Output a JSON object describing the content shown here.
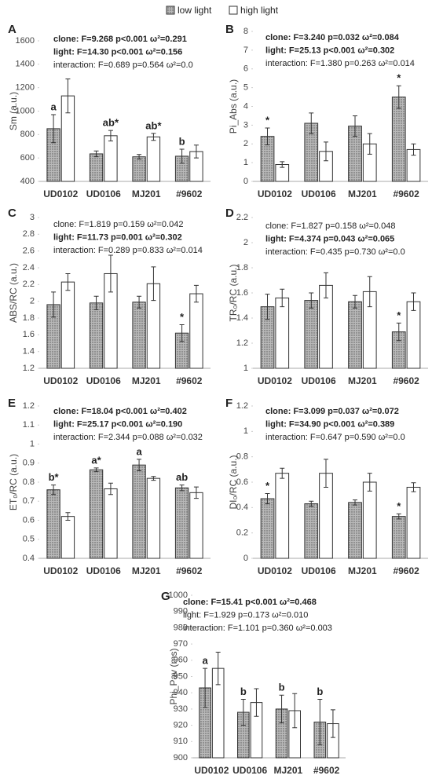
{
  "legend": [
    {
      "name": "low light",
      "color": "#b9b9b9",
      "pattern": "dots"
    },
    {
      "name": "high light",
      "color": "#ffffff"
    }
  ],
  "chart_data": [
    {
      "type": "bar",
      "panel": "A",
      "y_label": "Sm (a.u.)",
      "categories": [
        "UD0102",
        "UD0106",
        "MJ201",
        "#9602"
      ],
      "ylim": [
        400,
        1600
      ],
      "yticks": [
        400,
        600,
        800,
        1000,
        1200,
        1400,
        1600
      ],
      "stats": [
        {
          "text": "clone: F=9.268 p<0.001 ω²=0.291",
          "bold": true
        },
        {
          "text": "light: F=14.30 p<0.001 ω²=0.156",
          "bold": true
        },
        {
          "text": "interaction: F=0.689 p=0.564 ω²=0.0",
          "bold": false
        }
      ],
      "series": [
        {
          "values": [
            850,
            635,
            610,
            615
          ],
          "errors": [
            120,
            25,
            20,
            60
          ],
          "annotations": [
            "a",
            null,
            null,
            "b"
          ]
        },
        {
          "values": [
            1130,
            790,
            780,
            655
          ],
          "errors": [
            145,
            45,
            30,
            55
          ],
          "annotations": [
            null,
            "ab*",
            "ab*",
            null
          ]
        }
      ]
    },
    {
      "type": "bar",
      "panel": "B",
      "y_label": "Pi_Abs (a.u.)",
      "categories": [
        "UD0102",
        "UD0106",
        "MJ201",
        "#9602"
      ],
      "ylim": [
        0,
        8
      ],
      "yticks": [
        0,
        1,
        2,
        3,
        4,
        5,
        6,
        7,
        8
      ],
      "stats": [
        {
          "text": "clone: F=3.240 p=0.032 ω²=0.084",
          "bold": true
        },
        {
          "text": "light: F=25.13 p<0.001 ω²=0.302",
          "bold": true
        },
        {
          "text": "interaction: F=1.380 p=0.263 ω²=0.014",
          "bold": false
        }
      ],
      "series": [
        {
          "values": [
            2.4,
            3.1,
            2.95,
            4.5
          ],
          "errors": [
            0.45,
            0.55,
            0.55,
            0.6
          ],
          "annotations": [
            "*",
            null,
            null,
            "*"
          ]
        },
        {
          "values": [
            0.9,
            1.6,
            2.0,
            1.7
          ],
          "errors": [
            0.15,
            0.5,
            0.55,
            0.3
          ],
          "annotations": [
            null,
            null,
            null,
            null
          ]
        }
      ]
    },
    {
      "type": "bar",
      "panel": "C",
      "y_label": "ABS/RC (a.u.)",
      "categories": [
        "UD0102",
        "UD0106",
        "MJ201",
        "#9602"
      ],
      "ylim": [
        1.2,
        3
      ],
      "yticks": [
        1.2,
        1.4,
        1.6,
        1.8,
        2,
        2.2,
        2.4,
        2.6,
        2.8,
        3
      ],
      "stats": [
        {
          "text": "clone: F=1.819 p=0.159 ω²=0.042",
          "bold": false
        },
        {
          "text": "light: F=11.73 p=0.001 ω²=0.302",
          "bold": true
        },
        {
          "text": "interaction: F=0.289 p=0.833 ω²=0.014",
          "bold": false
        }
      ],
      "series": [
        {
          "values": [
            1.96,
            1.98,
            1.99,
            1.62
          ],
          "errors": [
            0.15,
            0.08,
            0.07,
            0.1
          ],
          "annotations": [
            null,
            null,
            null,
            "*"
          ]
        },
        {
          "values": [
            2.23,
            2.33,
            2.21,
            2.09
          ],
          "errors": [
            0.1,
            0.22,
            0.2,
            0.1
          ],
          "annotations": [
            null,
            null,
            null,
            null
          ]
        }
      ]
    },
    {
      "type": "bar",
      "panel": "D",
      "y_label": "TR₀/RC (a.u.)",
      "categories": [
        "UD0102",
        "UD0106",
        "MJ201",
        "#9602"
      ],
      "ylim": [
        1,
        2.2
      ],
      "yticks": [
        1,
        1.2,
        1.4,
        1.6,
        1.8,
        2,
        2.2
      ],
      "stats": [
        {
          "text": "clone: F=1.827 p=0.158 ω²=0.048",
          "bold": false
        },
        {
          "text": "light: F=4.374 p=0.043 ω²=0.065",
          "bold": true
        },
        {
          "text": "interaction: F=0.435 p=0.730 ω²=0.0",
          "bold": false
        }
      ],
      "series": [
        {
          "values": [
            1.49,
            1.54,
            1.53,
            1.29
          ],
          "errors": [
            0.1,
            0.06,
            0.05,
            0.07
          ],
          "annotations": [
            null,
            null,
            null,
            "*"
          ]
        },
        {
          "values": [
            1.56,
            1.66,
            1.61,
            1.53
          ],
          "errors": [
            0.07,
            0.1,
            0.12,
            0.07
          ],
          "annotations": [
            null,
            null,
            null,
            null
          ]
        }
      ]
    },
    {
      "type": "bar",
      "panel": "E",
      "y_label": "ET₀/RC (a.u.)",
      "categories": [
        "UD0102",
        "UD0106",
        "MJ201",
        "#9602"
      ],
      "ylim": [
        0.4,
        1.2
      ],
      "yticks": [
        0.4,
        0.5,
        0.6,
        0.7,
        0.8,
        0.9,
        1,
        1.1,
        1.2
      ],
      "stats": [
        {
          "text": "clone: F=18.04 p<0.001 ω²=0.402",
          "bold": true
        },
        {
          "text": "light: F=25.17 p<0.001 ω²=0.190",
          "bold": true
        },
        {
          "text": "interaction: F=2.344 p=0.088 ω²=0.032",
          "bold": false
        }
      ],
      "series": [
        {
          "values": [
            0.76,
            0.865,
            0.89,
            0.77
          ],
          "errors": [
            0.025,
            0.01,
            0.03,
            0.015
          ],
          "annotations": [
            "b*",
            "a*",
            "a",
            "ab"
          ]
        },
        {
          "values": [
            0.62,
            0.765,
            0.82,
            0.745
          ],
          "errors": [
            0.02,
            0.03,
            0.01,
            0.03
          ],
          "annotations": [
            null,
            null,
            null,
            null
          ]
        }
      ]
    },
    {
      "type": "bar",
      "panel": "F",
      "y_label": "DI₀/RC (a.u.)",
      "categories": [
        "UD0102",
        "UD0106",
        "MJ201",
        "#9602"
      ],
      "ylim": [
        0,
        1.2
      ],
      "yticks": [
        0,
        0.2,
        0.4,
        0.6,
        0.8,
        1,
        1.2
      ],
      "stats": [
        {
          "text": "clone: F=3.099 p=0.037 ω²=0.072",
          "bold": true
        },
        {
          "text": "light: F=34.90 p<0.001 ω²=0.389",
          "bold": true
        },
        {
          "text": "interaction: F=0.647 p=0.590 ω²=0.0",
          "bold": false
        }
      ],
      "series": [
        {
          "values": [
            0.47,
            0.43,
            0.44,
            0.33
          ],
          "errors": [
            0.04,
            0.02,
            0.02,
            0.02
          ],
          "annotations": [
            "*",
            null,
            null,
            "*"
          ]
        },
        {
          "values": [
            0.67,
            0.67,
            0.6,
            0.56
          ],
          "errors": [
            0.04,
            0.11,
            0.07,
            0.035
          ],
          "annotations": [
            null,
            null,
            null,
            null
          ]
        }
      ]
    },
    {
      "type": "bar",
      "panel": "G",
      "y_label": "Phi_Pav (ms)",
      "categories": [
        "UD0102",
        "UD0106",
        "MJ201",
        "#9602"
      ],
      "ylim": [
        900,
        1000
      ],
      "yticks": [
        900,
        910,
        920,
        930,
        940,
        950,
        960,
        970,
        980,
        990,
        1000
      ],
      "stats": [
        {
          "text": "clone: F=15.41 p<0.001 ω²=0.468",
          "bold": true
        },
        {
          "text": "light: F=1.929 p=0.173 ω²=0.010",
          "bold": false
        },
        {
          "text": "interaction: F=1.101 p=0.360 ω²=0.003",
          "bold": false
        }
      ],
      "series": [
        {
          "values": [
            943,
            928,
            930,
            922
          ],
          "errors": [
            12,
            8,
            8.5,
            14
          ],
          "annotations": [
            "a",
            "b",
            "b",
            "b"
          ]
        },
        {
          "values": [
            955,
            934,
            929,
            921
          ],
          "errors": [
            10,
            8.5,
            10.5,
            8.5
          ],
          "annotations": [
            null,
            null,
            null,
            null
          ]
        }
      ]
    }
  ]
}
